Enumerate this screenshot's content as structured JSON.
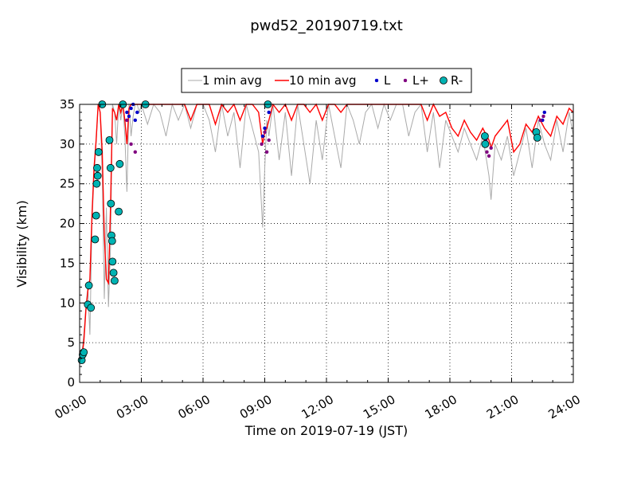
{
  "chart_data": {
    "type": "line",
    "title": "pwd52_20190719.txt",
    "xlabel": "Time on 2019-07-19 (JST)",
    "ylabel": "Visibility (km)",
    "xlim": [
      0,
      24
    ],
    "ylim": [
      0,
      35
    ],
    "x_ticks": [
      0,
      3,
      6,
      9,
      12,
      15,
      18,
      21,
      24
    ],
    "x_tick_labels": [
      "00:00",
      "03:00",
      "06:00",
      "09:00",
      "12:00",
      "15:00",
      "18:00",
      "21:00",
      "24:00"
    ],
    "y_ticks": [
      0,
      5,
      10,
      15,
      20,
      25,
      30,
      35
    ],
    "y_tick_labels": [
      "0",
      "5",
      "10",
      "15",
      "20",
      "25",
      "30",
      "35"
    ],
    "grid": true,
    "legend_position": "top-center",
    "legend": [
      {
        "label": "1 min avg",
        "kind": "line",
        "color": "#aaaaaa"
      },
      {
        "label": "10 min avg",
        "kind": "line",
        "color": "#ff0000"
      },
      {
        "label": "L",
        "kind": "marker",
        "color": "#0000cc"
      },
      {
        "label": "L+",
        "kind": "marker",
        "color": "#800080"
      },
      {
        "label": "R-",
        "kind": "marker",
        "color": "#00b3b3"
      }
    ],
    "series": [
      {
        "name": "1 min avg",
        "color": "#aaaaaa",
        "x": [
          0.0,
          0.1,
          0.2,
          0.3,
          0.4,
          0.5,
          0.6,
          0.7,
          0.8,
          0.9,
          1.0,
          1.1,
          1.2,
          1.3,
          1.4,
          1.5,
          1.6,
          1.7,
          1.8,
          1.9,
          2.0,
          2.1,
          2.2,
          2.3,
          2.4,
          2.5,
          2.6,
          2.7,
          2.8,
          2.9,
          3.0,
          3.3,
          3.6,
          3.9,
          4.2,
          4.5,
          4.8,
          5.1,
          5.4,
          5.7,
          6.0,
          6.3,
          6.6,
          6.9,
          7.2,
          7.5,
          7.8,
          8.1,
          8.4,
          8.7,
          8.9,
          9.0,
          9.1,
          9.2,
          9.4,
          9.7,
          10.0,
          10.3,
          10.6,
          10.9,
          11.2,
          11.5,
          11.8,
          12.1,
          12.4,
          12.7,
          13.0,
          13.3,
          13.6,
          13.9,
          14.2,
          14.5,
          14.8,
          15.1,
          15.4,
          15.7,
          16.0,
          16.3,
          16.6,
          16.9,
          17.2,
          17.5,
          17.8,
          18.1,
          18.4,
          18.7,
          19.0,
          19.3,
          19.6,
          19.9,
          20.0,
          20.2,
          20.5,
          20.8,
          21.1,
          21.4,
          21.7,
          22.0,
          22.3,
          22.6,
          22.9,
          23.2,
          23.5,
          23.8,
          24.0
        ],
        "values": [
          2.5,
          3.5,
          6.0,
          9.5,
          12.0,
          6.0,
          20.0,
          26.0,
          30.0,
          35.0,
          34.0,
          26.0,
          10.5,
          22.0,
          9.5,
          17.0,
          35.0,
          34.0,
          30.0,
          35.0,
          33.0,
          35.0,
          31.0,
          24.0,
          35.0,
          31.0,
          33.5,
          35.0,
          35.0,
          34.0,
          35.0,
          32.5,
          35.0,
          34.0,
          31.0,
          35.0,
          33.0,
          35.0,
          32.0,
          35.0,
          35.0,
          33.0,
          29.0,
          35.0,
          31.0,
          34.0,
          27.0,
          35.0,
          32.0,
          29.0,
          19.5,
          27.0,
          33.0,
          31.0,
          35.0,
          28.0,
          34.0,
          26.0,
          35.0,
          30.0,
          25.0,
          33.0,
          28.0,
          35.0,
          31.0,
          27.0,
          35.0,
          33.0,
          30.0,
          34.0,
          35.0,
          32.0,
          35.0,
          33.0,
          35.0,
          35.0,
          31.0,
          34.0,
          35.0,
          29.0,
          34.0,
          27.0,
          33.0,
          31.0,
          29.0,
          32.0,
          30.0,
          28.0,
          31.0,
          26.0,
          23.0,
          30.0,
          28.0,
          31.0,
          26.0,
          29.0,
          32.0,
          27.0,
          33.0,
          30.0,
          28.0,
          33.0,
          29.0,
          34.0,
          31.0
        ]
      },
      {
        "name": "10 min avg",
        "color": "#ff0000",
        "x": [
          0.0,
          0.1,
          0.2,
          0.3,
          0.4,
          0.5,
          0.6,
          0.7,
          0.8,
          0.9,
          1.0,
          1.1,
          1.2,
          1.3,
          1.4,
          1.5,
          1.6,
          1.7,
          1.8,
          1.9,
          2.0,
          2.1,
          2.2,
          2.3,
          2.4,
          2.5,
          2.6,
          2.7,
          2.8,
          2.9,
          3.0,
          3.3,
          3.6,
          3.9,
          4.2,
          4.5,
          4.8,
          5.1,
          5.4,
          5.7,
          6.0,
          6.3,
          6.6,
          6.9,
          7.2,
          7.5,
          7.8,
          8.1,
          8.4,
          8.7,
          8.9,
          9.0,
          9.1,
          9.2,
          9.4,
          9.7,
          10.0,
          10.3,
          10.6,
          10.9,
          11.2,
          11.5,
          11.8,
          12.1,
          12.4,
          12.7,
          13.0,
          13.3,
          13.6,
          13.9,
          14.2,
          14.5,
          14.8,
          15.1,
          15.4,
          15.7,
          16.0,
          16.3,
          16.6,
          16.9,
          17.2,
          17.5,
          17.8,
          18.1,
          18.4,
          18.7,
          19.0,
          19.3,
          19.6,
          19.9,
          20.0,
          20.2,
          20.5,
          20.8,
          21.1,
          21.4,
          21.7,
          22.0,
          22.3,
          22.6,
          22.9,
          23.2,
          23.5,
          23.8,
          24.0
        ],
        "values": [
          2.8,
          3.2,
          5.0,
          9.0,
          11.5,
          13.0,
          21.0,
          27.0,
          30.5,
          35.0,
          34.0,
          29.0,
          18.5,
          13.0,
          12.5,
          22.0,
          34.5,
          34.0,
          33.0,
          35.0,
          34.0,
          35.0,
          33.0,
          30.0,
          34.5,
          35.0,
          35.0,
          35.0,
          35.0,
          35.0,
          35.0,
          35.0,
          35.0,
          35.0,
          35.0,
          35.0,
          35.0,
          35.0,
          33.0,
          35.0,
          35.0,
          35.0,
          32.5,
          35.0,
          34.0,
          35.0,
          33.0,
          35.0,
          35.0,
          34.0,
          30.0,
          31.5,
          32.0,
          33.0,
          35.0,
          34.0,
          35.0,
          33.0,
          35.0,
          35.0,
          34.0,
          35.0,
          33.0,
          35.0,
          35.0,
          34.0,
          35.0,
          35.0,
          35.0,
          35.0,
          35.0,
          35.0,
          35.0,
          35.0,
          35.0,
          35.0,
          35.0,
          35.0,
          35.0,
          33.0,
          35.0,
          33.5,
          34.0,
          32.0,
          31.0,
          33.0,
          31.5,
          30.5,
          32.0,
          30.5,
          29.5,
          31.0,
          32.0,
          33.0,
          29.0,
          30.0,
          32.5,
          31.5,
          33.5,
          32.0,
          31.0,
          33.5,
          32.5,
          34.5,
          34.0
        ]
      },
      {
        "name": "L",
        "color": "#0000cc",
        "x": [
          2.2,
          2.3,
          2.4,
          2.5,
          2.6,
          2.7,
          2.8,
          8.9,
          9.0,
          9.2,
          19.7,
          22.5,
          22.6
        ],
        "values": [
          35.0,
          34.0,
          33.5,
          34.5,
          35.0,
          33.0,
          34.0,
          31.0,
          32.0,
          34.0,
          30.0,
          33.0,
          34.0
        ]
      },
      {
        "name": "L+",
        "color": "#800080",
        "x": [
          2.3,
          2.5,
          2.7,
          8.85,
          9.0,
          9.1,
          9.2,
          19.75,
          19.8,
          19.9,
          20.0,
          22.4,
          22.55
        ],
        "values": [
          33.0,
          30.0,
          29.0,
          30.0,
          31.5,
          29.0,
          30.5,
          30.5,
          29.0,
          28.5,
          29.5,
          33.0,
          33.5
        ]
      },
      {
        "name": "R-",
        "color": "#00b3b3",
        "x": [
          0.1,
          0.15,
          0.2,
          0.4,
          0.45,
          0.55,
          0.75,
          0.8,
          0.83,
          0.85,
          0.88,
          0.92,
          1.1,
          1.45,
          1.5,
          1.52,
          1.55,
          1.58,
          1.6,
          1.65,
          1.7,
          1.9,
          1.95,
          2.1,
          3.2,
          9.15,
          19.7,
          19.72,
          22.2,
          22.25
        ],
        "values": [
          2.8,
          3.5,
          3.8,
          9.8,
          12.2,
          9.4,
          18.0,
          21.0,
          25.0,
          27.0,
          26.0,
          29.0,
          35.0,
          30.5,
          27.0,
          22.5,
          18.5,
          17.8,
          15.2,
          13.8,
          12.8,
          21.5,
          27.5,
          35.0,
          35.0,
          35.0,
          31.0,
          30.0,
          31.5,
          30.8
        ]
      }
    ]
  }
}
